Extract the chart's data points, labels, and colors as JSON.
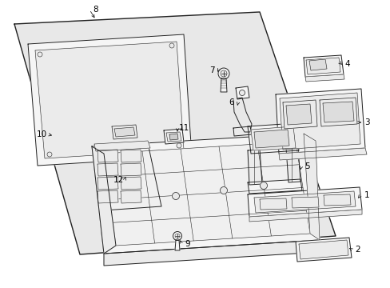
{
  "bg_color": "#ffffff",
  "line_color": "#222222",
  "panel_fill": "#e8e8e8",
  "part_fill": "#f5f5f5",
  "part_fill2": "#ebebeb",
  "label_color": "#000000",
  "figsize": [
    4.89,
    3.6
  ],
  "dpi": 100,
  "lw_main": 0.9,
  "lw_part": 0.7,
  "lw_detail": 0.5
}
